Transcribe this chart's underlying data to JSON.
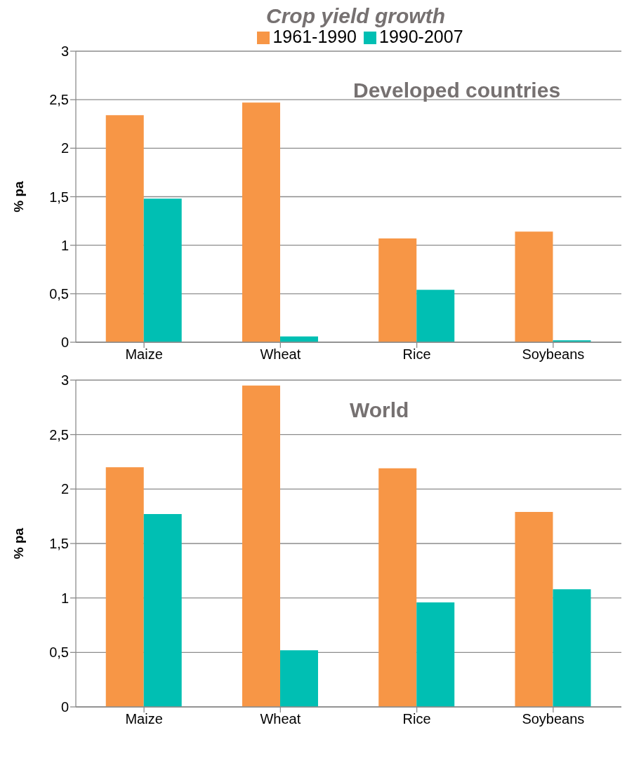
{
  "chart_data": [
    {
      "type": "bar",
      "title": "Crop yield growth",
      "ylabel": "% pa",
      "annotations": [
        "Developed countries"
      ],
      "categories": [
        "Maize",
        "Wheat",
        "Rice",
        "Soybeans"
      ],
      "series": [
        {
          "name": "1961-1990",
          "color": "#f79646",
          "values": [
            2.34,
            2.47,
            1.07,
            1.14
          ]
        },
        {
          "name": "1990-2007",
          "color": "#00bfb3",
          "values": [
            1.48,
            0.06,
            0.54,
            0.02
          ]
        }
      ],
      "ylim": [
        0,
        3
      ],
      "yticks": [
        0,
        {
          "value": 0.5,
          "label": "0,5"
        },
        1,
        {
          "value": 1.5,
          "label": "1,5"
        },
        2,
        {
          "value": 2.5,
          "label": "2,5"
        },
        3
      ],
      "grid": "y",
      "legend": "top"
    },
    {
      "type": "bar",
      "ylabel": "% pa",
      "annotations": [
        "World"
      ],
      "categories": [
        "Maize",
        "Wheat",
        "Rice",
        "Soybeans"
      ],
      "series": [
        {
          "color": "#f79646",
          "values": [
            2.2,
            2.95,
            2.19,
            1.79
          ]
        },
        {
          "color": "#00bfb3",
          "values": [
            1.77,
            0.52,
            0.96,
            1.08
          ]
        }
      ],
      "ylim": [
        0,
        3
      ],
      "yticks": [
        0,
        {
          "value": 0.5,
          "label": "0,5"
        },
        1,
        {
          "value": 1.5,
          "label": "1,5"
        },
        2,
        {
          "value": 2.5,
          "label": "2,5"
        },
        3
      ],
      "grid": "y"
    }
  ]
}
